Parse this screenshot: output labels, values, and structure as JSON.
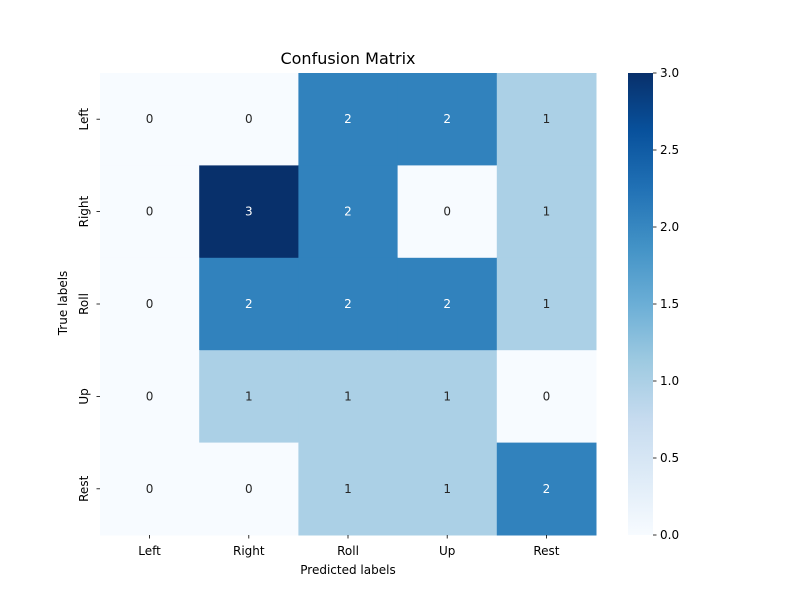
{
  "chart_data": {
    "type": "heatmap",
    "title": "Confusion Matrix",
    "xlabel": "Predicted labels",
    "ylabel": "True labels",
    "x_categories": [
      "Left",
      "Right",
      "Roll",
      "Up",
      "Rest"
    ],
    "y_categories": [
      "Left",
      "Right",
      "Roll",
      "Up",
      "Rest"
    ],
    "values": [
      [
        0,
        0,
        2,
        2,
        1
      ],
      [
        0,
        3,
        2,
        0,
        1
      ],
      [
        0,
        2,
        2,
        2,
        1
      ],
      [
        0,
        1,
        1,
        1,
        0
      ],
      [
        0,
        0,
        1,
        1,
        2
      ]
    ],
    "colorbar": {
      "min": 0.0,
      "max": 3.0,
      "ticks": [
        "0.0",
        "0.5",
        "1.0",
        "1.5",
        "2.0",
        "2.5",
        "3.0"
      ]
    },
    "colormap": "Blues",
    "colors": {
      "0": "#f7fbff",
      "1": "#abd0e6",
      "2": "#3182bd",
      "3": "#08306b"
    }
  }
}
